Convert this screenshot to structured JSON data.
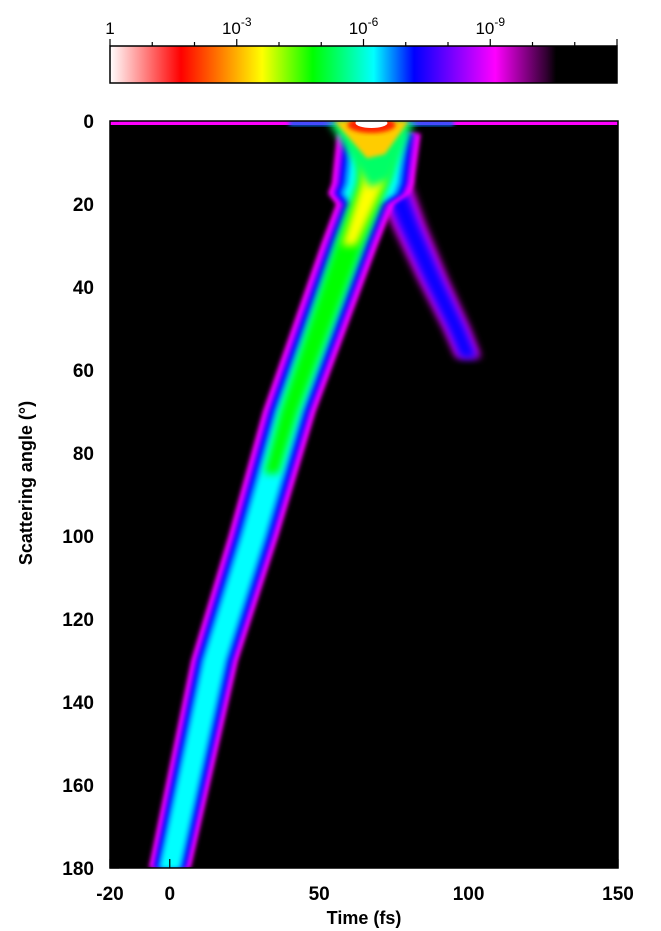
{
  "chart_data": {
    "type": "heatmap",
    "xlabel": "Time (fs)",
    "ylabel": "Scattering angle (°)",
    "xlim": [
      -20,
      150
    ],
    "ylim": [
      0,
      180
    ],
    "y_inverted": true,
    "x_ticks": [
      -20,
      0,
      50,
      100,
      150
    ],
    "y_ticks": [
      0,
      20,
      40,
      60,
      80,
      100,
      120,
      140,
      160,
      180
    ],
    "grid": false,
    "colorbar": {
      "position": "top",
      "scale": "log",
      "tick_labels": [
        {
          "base": "1",
          "exp": ""
        },
        {
          "base": "10",
          "exp": "-3"
        },
        {
          "base": "10",
          "exp": "-6"
        },
        {
          "base": "10",
          "exp": "-9"
        }
      ],
      "tick_values": [
        1,
        0.001,
        1e-06,
        1e-09
      ],
      "range": [
        1,
        1e-12
      ],
      "colors": [
        "#ffffff",
        "#ff0000",
        "#ffff00",
        "#00ff00",
        "#00ffff",
        "#0000ff",
        "#ff00ff",
        "#000000"
      ]
    },
    "features": [
      {
        "name": "forward peak",
        "t_range": [
          55,
          80
        ],
        "angle": 0,
        "level": 0.001
      },
      {
        "name": "main branch",
        "ridge": [
          [
            68,
            15
          ],
          [
            60,
            30
          ],
          [
            50,
            50
          ],
          [
            40,
            70
          ],
          [
            28,
            100
          ],
          [
            15,
            130
          ],
          [
            6,
            160
          ],
          [
            0,
            180
          ]
        ],
        "level": 1e-07
      },
      {
        "name": "secondary branch",
        "ridge": [
          [
            72,
            10
          ],
          [
            80,
            25
          ],
          [
            88,
            38
          ],
          [
            96,
            50
          ],
          [
            100,
            57
          ]
        ],
        "level": 1e-09
      },
      {
        "name": "0° streak",
        "t_range": [
          -20,
          150
        ],
        "angle": 0,
        "level": 1e-10
      }
    ]
  }
}
